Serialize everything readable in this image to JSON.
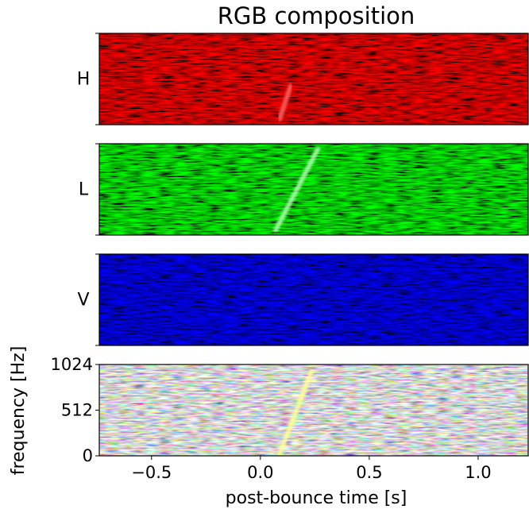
{
  "chart_data": {
    "type": "spectrogram",
    "title": "RGB composition",
    "xlabel": "post-bounce time [s]",
    "ylabel": "frequency [Hz]",
    "channels": [
      {
        "name": "H",
        "color": "#ff0000"
      },
      {
        "name": "L",
        "color": "#00ff00"
      },
      {
        "name": "V",
        "color": "#0000ff"
      }
    ],
    "xlim": [
      -0.74,
      1.23
    ],
    "xticks": [
      {
        "value": -0.5,
        "label": "−0.5"
      },
      {
        "value": 0,
        "label": "0.0"
      },
      {
        "value": 0.5,
        "label": "0.5"
      },
      {
        "value": 1,
        "label": "1.0"
      }
    ],
    "ylim": [
      0,
      1024
    ],
    "yticks": [
      0,
      512,
      1024
    ]
  }
}
